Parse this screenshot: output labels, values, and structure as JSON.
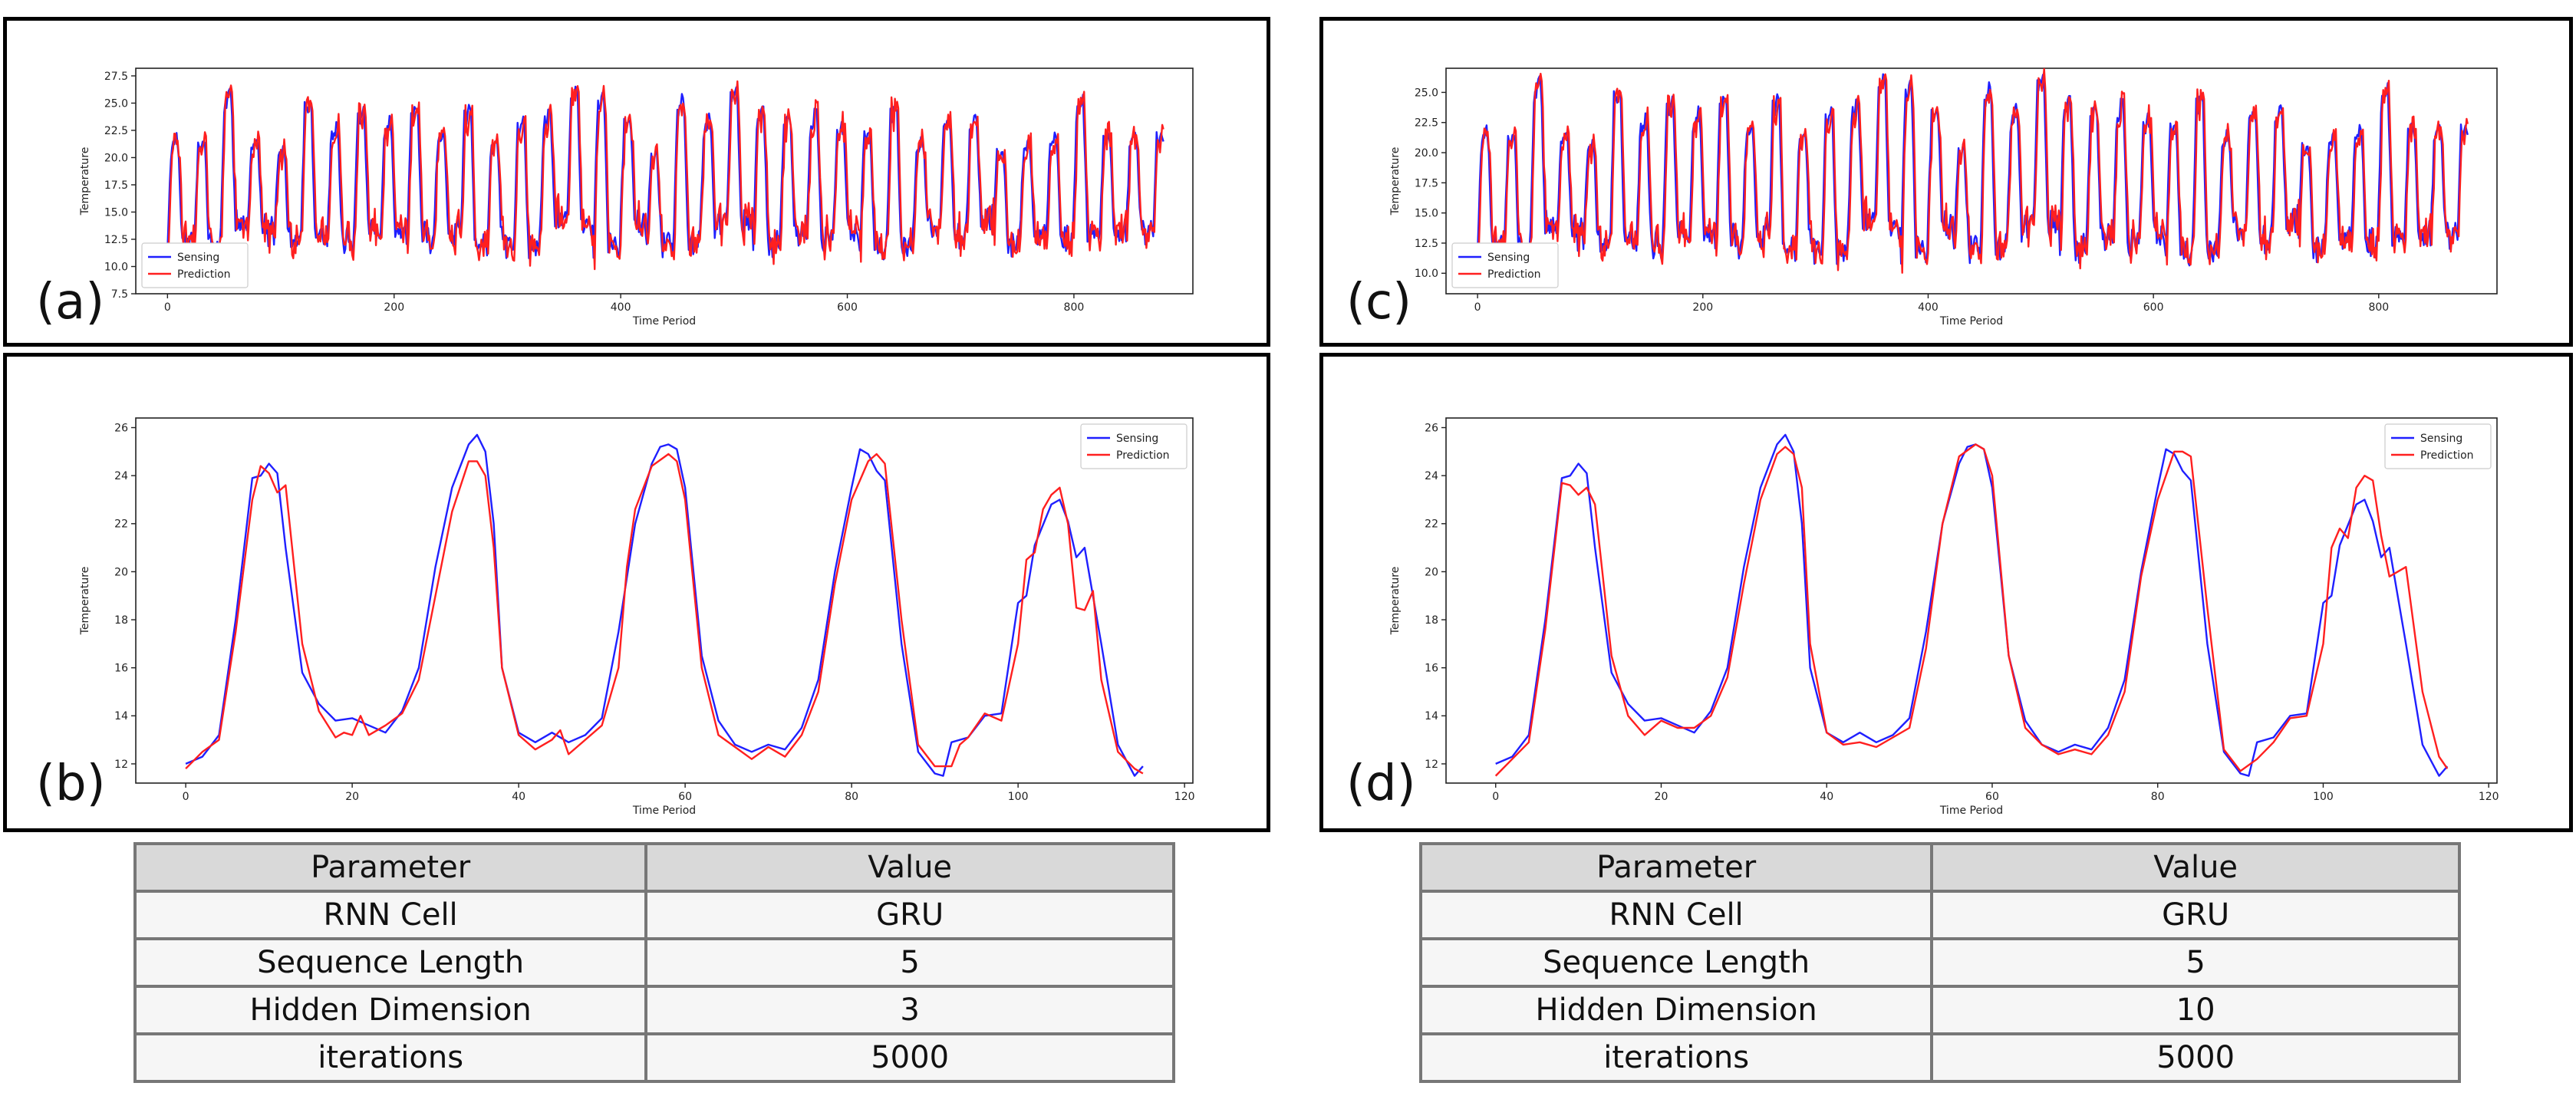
{
  "colors": {
    "sensing": "#1f1fff",
    "prediction": "#ff1f1f"
  },
  "panel_labels": {
    "a": "(a)",
    "b": "(b)",
    "c": "(c)",
    "d": "(d)"
  },
  "chart_data": [
    {
      "id": "a",
      "type": "line",
      "xlabel": "Time Period",
      "ylabel": "Temperature",
      "xlim": [
        -28,
        905
      ],
      "ylim": [
        7.5,
        28.2
      ],
      "xticks": [
        0,
        200,
        400,
        600,
        800
      ],
      "xtick_labels": [
        "0",
        "200",
        "400",
        "600",
        "800"
      ],
      "yticks": [
        7.5,
        10.0,
        12.5,
        15.0,
        17.5,
        20.0,
        22.5,
        25.0,
        27.5
      ],
      "ytick_labels": [
        "7.5",
        "10.0",
        "12.5",
        "15.0",
        "17.5",
        "20.0",
        "22.5",
        "25.0",
        "27.5"
      ],
      "legend": {
        "position": "bottom-left",
        "entries": [
          "Sensing",
          "Prediction"
        ]
      },
      "generated": {
        "n": 880,
        "period": 23.5,
        "seed": 11,
        "base": 12.5,
        "amp_min": 8,
        "amp_max": 14,
        "pred_lag": 1,
        "pred_noise": 1.1
      }
    },
    {
      "id": "c",
      "type": "line",
      "xlabel": "Time Period",
      "ylabel": "Temperature",
      "xlim": [
        -28,
        905
      ],
      "ylim": [
        8.3,
        27.0
      ],
      "xticks": [
        0,
        200,
        400,
        600,
        800
      ],
      "xtick_labels": [
        "0",
        "200",
        "400",
        "600",
        "800"
      ],
      "yticks": [
        10.0,
        12.5,
        15.0,
        17.5,
        20.0,
        22.5,
        25.0
      ],
      "ytick_labels": [
        "10.0",
        "12.5",
        "15.0",
        "17.5",
        "20.0",
        "22.5",
        "25.0"
      ],
      "legend": {
        "position": "bottom-left",
        "entries": [
          "Sensing",
          "Prediction"
        ]
      },
      "generated": {
        "n": 880,
        "period": 23.5,
        "seed": 11,
        "base": 12.5,
        "amp_min": 8,
        "amp_max": 14,
        "pred_lag": 1,
        "pred_noise": 0.8
      }
    },
    {
      "id": "b",
      "type": "line",
      "xlabel": "Time Period",
      "ylabel": "Temperature",
      "xlim": [
        -6,
        121
      ],
      "ylim": [
        11.2,
        26.4
      ],
      "xticks": [
        0,
        20,
        40,
        60,
        80,
        100,
        120
      ],
      "xtick_labels": [
        "0",
        "20",
        "40",
        "60",
        "80",
        "100",
        "120"
      ],
      "yticks": [
        12,
        14,
        16,
        18,
        20,
        22,
        24,
        26
      ],
      "ytick_labels": [
        "12",
        "14",
        "16",
        "18",
        "20",
        "22",
        "24",
        "26"
      ],
      "legend": {
        "position": "top-right",
        "entries": [
          "Sensing",
          "Prediction"
        ]
      },
      "series": [
        {
          "name": "Sensing",
          "x": [
            0,
            2,
            4,
            6,
            8,
            9,
            10,
            11,
            12,
            14,
            16,
            18,
            20,
            22,
            24,
            26,
            28,
            30,
            32,
            34,
            35,
            36,
            37,
            38,
            40,
            42,
            44,
            46,
            48,
            50,
            52,
            54,
            56,
            57,
            58,
            59,
            60,
            62,
            64,
            66,
            68,
            70,
            72,
            74,
            76,
            78,
            80,
            81,
            82,
            83,
            84,
            86,
            88,
            90,
            91,
            92,
            94,
            96,
            98,
            100,
            101,
            102,
            104,
            105,
            106,
            107,
            108,
            110,
            112,
            114,
            115
          ],
          "y": [
            12.0,
            12.3,
            13.2,
            18.0,
            23.9,
            24.0,
            24.5,
            24.1,
            21.0,
            15.8,
            14.5,
            13.8,
            13.9,
            13.6,
            13.3,
            14.2,
            16.0,
            20.2,
            23.5,
            25.3,
            25.7,
            25.0,
            22.0,
            16.0,
            13.3,
            12.9,
            13.3,
            12.9,
            13.2,
            13.9,
            17.5,
            22.0,
            24.5,
            25.2,
            25.3,
            25.1,
            23.5,
            16.5,
            13.8,
            12.8,
            12.5,
            12.8,
            12.6,
            13.5,
            15.5,
            20.0,
            23.5,
            25.1,
            24.9,
            24.2,
            23.8,
            17.0,
            12.5,
            11.6,
            11.5,
            12.9,
            13.1,
            14.0,
            14.1,
            18.7,
            19.0,
            21.1,
            22.8,
            23.0,
            22.1,
            20.6,
            21.0,
            17.0,
            12.8,
            11.5,
            11.9
          ]
        },
        {
          "name": "Prediction",
          "x": [
            0,
            2,
            4,
            6,
            8,
            9,
            10,
            11,
            12,
            14,
            16,
            18,
            19,
            20,
            21,
            22,
            24,
            26,
            28,
            30,
            32,
            34,
            35,
            36,
            37,
            38,
            40,
            42,
            44,
            45,
            46,
            48,
            50,
            52,
            53,
            54,
            56,
            58,
            59,
            60,
            62,
            64,
            66,
            68,
            70,
            72,
            74,
            76,
            78,
            80,
            82,
            83,
            84,
            86,
            88,
            90,
            92,
            93,
            94,
            96,
            98,
            100,
            101,
            102,
            103,
            104,
            105,
            106,
            107,
            108,
            109,
            110,
            112,
            114,
            115
          ],
          "y": [
            11.8,
            12.5,
            13.0,
            17.5,
            23.0,
            24.4,
            24.1,
            23.3,
            23.6,
            17.0,
            14.2,
            13.1,
            13.3,
            13.2,
            14.0,
            13.2,
            13.6,
            14.1,
            15.5,
            19.0,
            22.5,
            24.6,
            24.6,
            24.0,
            21.0,
            16.0,
            13.2,
            12.6,
            13.0,
            13.4,
            12.4,
            13.0,
            13.6,
            16.0,
            20.2,
            22.6,
            24.4,
            24.9,
            24.6,
            23.0,
            16.0,
            13.2,
            12.7,
            12.2,
            12.7,
            12.3,
            13.2,
            15.0,
            19.5,
            23.0,
            24.6,
            24.9,
            24.5,
            18.0,
            12.8,
            11.9,
            11.9,
            12.8,
            13.1,
            14.1,
            13.8,
            17.0,
            20.5,
            20.8,
            22.6,
            23.2,
            23.5,
            22.0,
            18.5,
            18.4,
            19.2,
            15.5,
            12.5,
            11.8,
            11.6
          ]
        }
      ]
    },
    {
      "id": "d",
      "type": "line",
      "xlabel": "Time Period",
      "ylabel": "Temperature",
      "xlim": [
        -6,
        121
      ],
      "ylim": [
        11.2,
        26.4
      ],
      "xticks": [
        0,
        20,
        40,
        60,
        80,
        100,
        120
      ],
      "xtick_labels": [
        "0",
        "20",
        "40",
        "60",
        "80",
        "100",
        "120"
      ],
      "yticks": [
        12,
        14,
        16,
        18,
        20,
        22,
        24,
        26
      ],
      "ytick_labels": [
        "12",
        "14",
        "16",
        "18",
        "20",
        "22",
        "24",
        "26"
      ],
      "legend": {
        "position": "top-right",
        "entries": [
          "Sensing",
          "Prediction"
        ]
      },
      "series": [
        {
          "name": "Sensing",
          "x": [
            0,
            2,
            4,
            6,
            8,
            9,
            10,
            11,
            12,
            14,
            16,
            18,
            20,
            22,
            24,
            26,
            28,
            30,
            32,
            34,
            35,
            36,
            37,
            38,
            40,
            42,
            44,
            46,
            48,
            50,
            52,
            54,
            56,
            57,
            58,
            59,
            60,
            62,
            64,
            66,
            68,
            70,
            72,
            74,
            76,
            78,
            80,
            81,
            82,
            83,
            84,
            86,
            88,
            90,
            91,
            92,
            94,
            96,
            98,
            100,
            101,
            102,
            104,
            105,
            106,
            107,
            108,
            110,
            112,
            114,
            115
          ],
          "y": [
            12.0,
            12.3,
            13.2,
            18.0,
            23.9,
            24.0,
            24.5,
            24.1,
            21.0,
            15.8,
            14.5,
            13.8,
            13.9,
            13.6,
            13.3,
            14.2,
            16.0,
            20.2,
            23.5,
            25.3,
            25.7,
            25.0,
            22.0,
            16.0,
            13.3,
            12.9,
            13.3,
            12.9,
            13.2,
            13.9,
            17.5,
            22.0,
            24.5,
            25.2,
            25.3,
            25.1,
            23.5,
            16.5,
            13.8,
            12.8,
            12.5,
            12.8,
            12.6,
            13.5,
            15.5,
            20.0,
            23.5,
            25.1,
            24.9,
            24.2,
            23.8,
            17.0,
            12.5,
            11.6,
            11.5,
            12.9,
            13.1,
            14.0,
            14.1,
            18.7,
            19.0,
            21.1,
            22.8,
            23.0,
            22.1,
            20.6,
            21.0,
            17.0,
            12.8,
            11.5,
            11.9
          ]
        },
        {
          "name": "Prediction",
          "x": [
            0,
            2,
            4,
            6,
            8,
            9,
            10,
            11,
            12,
            14,
            16,
            18,
            20,
            22,
            24,
            26,
            28,
            30,
            32,
            34,
            35,
            36,
            37,
            38,
            40,
            42,
            44,
            46,
            48,
            50,
            52,
            54,
            56,
            58,
            59,
            60,
            62,
            64,
            66,
            68,
            70,
            72,
            74,
            76,
            78,
            80,
            82,
            83,
            84,
            86,
            88,
            90,
            92,
            94,
            96,
            98,
            100,
            101,
            102,
            103,
            104,
            105,
            106,
            107,
            108,
            110,
            112,
            114,
            115
          ],
          "y": [
            11.5,
            12.2,
            12.9,
            17.6,
            23.7,
            23.6,
            23.2,
            23.5,
            22.8,
            16.5,
            14.0,
            13.2,
            13.8,
            13.5,
            13.5,
            14.0,
            15.6,
            19.5,
            23.0,
            24.9,
            25.2,
            24.9,
            23.5,
            17.0,
            13.3,
            12.8,
            12.9,
            12.7,
            13.1,
            13.5,
            16.8,
            22.0,
            24.8,
            25.3,
            25.1,
            24.0,
            16.5,
            13.5,
            12.8,
            12.4,
            12.6,
            12.4,
            13.2,
            15.0,
            19.8,
            23.0,
            25.0,
            25.0,
            24.8,
            18.5,
            12.6,
            11.7,
            12.2,
            12.9,
            13.9,
            14.0,
            17.0,
            21.0,
            21.8,
            21.4,
            23.5,
            24.0,
            23.8,
            21.5,
            19.8,
            20.2,
            15.0,
            12.3,
            11.8
          ]
        }
      ]
    }
  ],
  "tables": [
    {
      "id": "left",
      "header": [
        "Parameter",
        "Value"
      ],
      "rows": [
        [
          "RNN Cell",
          "GRU"
        ],
        [
          "Sequence Length",
          "5"
        ],
        [
          "Hidden Dimension",
          "3"
        ],
        [
          "iterations",
          "5000"
        ]
      ]
    },
    {
      "id": "right",
      "header": [
        "Parameter",
        "Value"
      ],
      "rows": [
        [
          "RNN Cell",
          "GRU"
        ],
        [
          "Sequence Length",
          "5"
        ],
        [
          "Hidden Dimension",
          "10"
        ],
        [
          "iterations",
          "5000"
        ]
      ]
    }
  ]
}
